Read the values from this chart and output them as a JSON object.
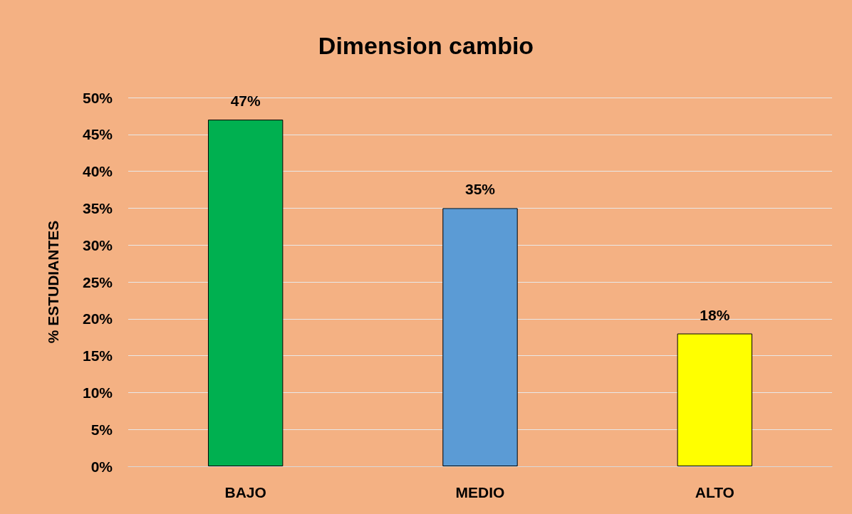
{
  "chart_data": {
    "type": "bar",
    "title": "Dimension cambio",
    "ylabel": "% ESTUDIANTES",
    "categories": [
      "BAJO",
      "MEDIO",
      "ALTO"
    ],
    "values": [
      47,
      35,
      18
    ],
    "colors": [
      "#00b050",
      "#5b9bd5",
      "#ffff00"
    ],
    "value_labels": [
      "47%",
      "35%",
      "18%"
    ],
    "ylim": [
      0,
      50
    ],
    "yticks": [
      {
        "value": 0,
        "label": "0%"
      },
      {
        "value": 5,
        "label": "5%"
      },
      {
        "value": 10,
        "label": "10%"
      },
      {
        "value": 15,
        "label": "15%"
      },
      {
        "value": 20,
        "label": "20%"
      },
      {
        "value": 25,
        "label": "25%"
      },
      {
        "value": 30,
        "label": "30%"
      },
      {
        "value": 35,
        "label": "35%"
      },
      {
        "value": 40,
        "label": "40%"
      },
      {
        "value": 45,
        "label": "45%"
      },
      {
        "value": 50,
        "label": "50%"
      }
    ],
    "grid": "y"
  }
}
